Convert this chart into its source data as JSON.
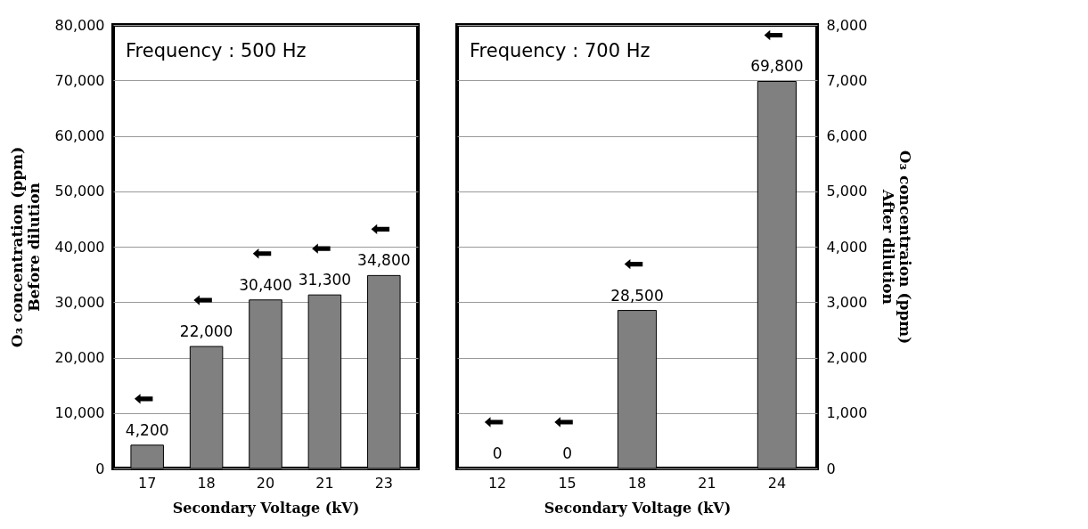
{
  "chart_data": [
    {
      "type": "bar",
      "title": "Frequency : 500 Hz",
      "categories": [
        "17",
        "18",
        "20",
        "21",
        "23"
      ],
      "values": [
        4200,
        22000,
        30400,
        31300,
        34800
      ],
      "value_labels": [
        "4,200",
        "22,000",
        "30,400",
        "31,300",
        "34,800"
      ],
      "color": "#808080",
      "ylim": [
        0,
        80000
      ],
      "yticks": [
        0,
        {
          "value": 10000,
          "label": "10,000"
        },
        {
          "value": 20000,
          "label": "20,000"
        },
        {
          "value": 30000,
          "label": "30,000"
        },
        {
          "value": 40000,
          "label": "40,000"
        },
        {
          "value": 50000,
          "label": "50,000"
        },
        {
          "value": 60000,
          "label": "60,000"
        },
        {
          "value": 70000,
          "label": "70,000"
        },
        {
          "value": 80000,
          "label": "80,000"
        }
      ],
      "xlabel": "Secondary Voltage (kV)",
      "ylabel": "O₃ concentration (ppm)\nBefore dilution",
      "grid": "y"
    },
    {
      "type": "bar",
      "title": "Frequency : 700 Hz",
      "categories": [
        "12",
        "15",
        "18",
        "21",
        "24"
      ],
      "values": [
        0,
        0,
        28500,
        null,
        69800
      ],
      "value_labels": [
        "0",
        "0",
        "28,500",
        null,
        "69,800"
      ],
      "color": "#808080",
      "ylim": [
        0,
        80000
      ],
      "yticks": [
        0,
        10000,
        20000,
        30000,
        40000,
        50000,
        60000,
        70000,
        80000
      ],
      "tick_labels": "x",
      "y2lim": [
        0,
        8000
      ],
      "y2ticks": [
        {
          "value": 0,
          "label": "0"
        },
        {
          "value": 1000,
          "label": "1,000"
        },
        {
          "value": 2000,
          "label": "2,000"
        },
        {
          "value": 3000,
          "label": "3,000"
        },
        {
          "value": 4000,
          "label": "4,000"
        },
        {
          "value": 5000,
          "label": "5,000"
        },
        {
          "value": 6000,
          "label": "6,000"
        },
        {
          "value": 7000,
          "label": "7,000"
        },
        {
          "value": 8000,
          "label": "8,000"
        }
      ],
      "xlabel": "Secondary Voltage (kV)",
      "y2label": "O₃ concentraion (ppm)\nAfter dilution",
      "grid": "y"
    }
  ]
}
